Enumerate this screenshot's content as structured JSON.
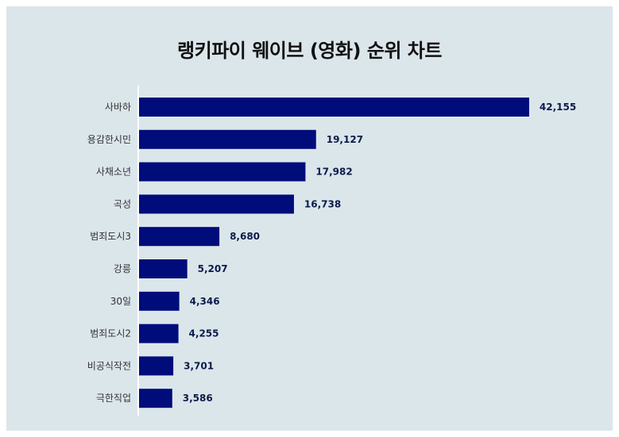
{
  "chart_data": {
    "type": "bar",
    "orientation": "horizontal",
    "title": "랭키파이 웨이브 (영화) 순위 차트",
    "categories": [
      "사바하",
      "용감한시민",
      "사채소년",
      "곡성",
      "범죄도시3",
      "강릉",
      "30일",
      "범죄도시2",
      "비공식작전",
      "극한직업"
    ],
    "values": [
      42155,
      19127,
      17982,
      16738,
      8680,
      5207,
      4346,
      4255,
      3701,
      3586
    ],
    "value_labels": [
      "42,155",
      "19,127",
      "17,982",
      "16,738",
      "8,680",
      "5,207",
      "4,346",
      "4,255",
      "3,701",
      "3,586"
    ],
    "xlim": [
      0,
      48000
    ],
    "grid": false,
    "legend": "none",
    "colors": {
      "bar": "#000c7a",
      "background": "#dbe6eb",
      "axis": "#ffffff"
    }
  }
}
